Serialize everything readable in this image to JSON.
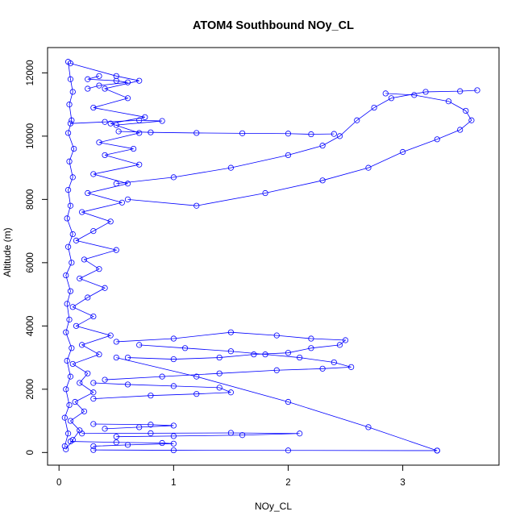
{
  "chart_data": {
    "type": "scatter",
    "title": "ATOM4 Southbound NOy_CL",
    "xlabel": "NOy_CL",
    "ylabel": "Altitude (m)",
    "xlim": [
      -0.1,
      3.84
    ],
    "ylim": [
      -400,
      12800
    ],
    "xticks": [
      0,
      1,
      2,
      3
    ],
    "yticks": [
      0,
      2000,
      4000,
      6000,
      8000,
      10000,
      12000
    ],
    "grid": false,
    "connected_points": true,
    "colors": {
      "series": "#0000ff",
      "axes": "#000000",
      "background": "#ffffff"
    },
    "series": [
      {
        "points": [
          [
            0.06,
            100
          ],
          [
            0.12,
            400
          ],
          [
            0.18,
            700
          ],
          [
            0.1,
            1000
          ],
          [
            0.22,
            1300
          ],
          [
            0.14,
            1600
          ],
          [
            0.3,
            1900
          ],
          [
            0.18,
            2200
          ],
          [
            0.25,
            2500
          ],
          [
            0.12,
            2800
          ],
          [
            0.35,
            3100
          ],
          [
            0.2,
            3400
          ],
          [
            0.45,
            3700
          ],
          [
            0.15,
            4000
          ],
          [
            0.3,
            4300
          ],
          [
            0.12,
            4600
          ],
          [
            0.25,
            4900
          ],
          [
            0.4,
            5200
          ],
          [
            0.18,
            5500
          ],
          [
            0.35,
            5800
          ],
          [
            0.22,
            6100
          ],
          [
            0.5,
            6400
          ],
          [
            0.15,
            6700
          ],
          [
            0.3,
            7000
          ],
          [
            0.45,
            7300
          ],
          [
            0.2,
            7600
          ],
          [
            0.55,
            7900
          ],
          [
            0.25,
            8200
          ],
          [
            0.6,
            8500
          ],
          [
            0.3,
            8800
          ],
          [
            0.7,
            9100
          ],
          [
            0.4,
            9400
          ],
          [
            0.65,
            9600
          ],
          [
            0.35,
            9800
          ],
          [
            0.7,
            10100
          ],
          [
            0.45,
            10400
          ],
          [
            0.75,
            10600
          ],
          [
            0.3,
            10900
          ],
          [
            0.6,
            11200
          ],
          [
            0.4,
            11500
          ],
          [
            0.7,
            11750
          ],
          [
            0.5,
            11900
          ],
          [
            0.1,
            12300
          ]
        ]
      },
      {
        "points": [
          [
            0.05,
            200
          ],
          [
            0.08,
            600
          ],
          [
            0.05,
            1100
          ],
          [
            0.09,
            1500
          ],
          [
            0.06,
            2000
          ],
          [
            0.1,
            2400
          ],
          [
            0.07,
            2900
          ],
          [
            0.11,
            3300
          ],
          [
            0.06,
            3800
          ],
          [
            0.09,
            4200
          ],
          [
            0.07,
            4700
          ],
          [
            0.1,
            5100
          ],
          [
            0.06,
            5600
          ],
          [
            0.11,
            6000
          ],
          [
            0.08,
            6500
          ],
          [
            0.12,
            6900
          ],
          [
            0.07,
            7400
          ],
          [
            0.1,
            7800
          ],
          [
            0.08,
            8300
          ],
          [
            0.12,
            8700
          ],
          [
            0.09,
            9200
          ],
          [
            0.13,
            9600
          ],
          [
            0.08,
            10100
          ],
          [
            0.11,
            10500
          ],
          [
            0.09,
            11000
          ],
          [
            0.12,
            11400
          ],
          [
            0.1,
            11800
          ],
          [
            0.08,
            12350
          ]
        ]
      },
      {
        "points": [
          [
            0.52,
            10150
          ],
          [
            0.8,
            10120
          ],
          [
            1.2,
            10100
          ],
          [
            1.6,
            10090
          ],
          [
            2.0,
            10080
          ],
          [
            2.2,
            10060
          ],
          [
            2.4,
            10070
          ]
        ]
      },
      {
        "points": [
          [
            0.5,
            8500
          ],
          [
            1.0,
            8700
          ],
          [
            1.5,
            9000
          ],
          [
            2.0,
            9400
          ],
          [
            2.3,
            9700
          ],
          [
            2.45,
            10000
          ],
          [
            2.6,
            10500
          ],
          [
            2.75,
            10900
          ],
          [
            2.9,
            11200
          ],
          [
            3.2,
            11400
          ],
          [
            3.5,
            11420
          ],
          [
            3.65,
            11450
          ]
        ]
      },
      {
        "points": [
          [
            0.6,
            8000
          ],
          [
            1.2,
            7800
          ],
          [
            1.8,
            8200
          ],
          [
            2.3,
            8600
          ],
          [
            2.7,
            9000
          ],
          [
            3.0,
            9500
          ],
          [
            3.3,
            9900
          ],
          [
            3.5,
            10200
          ],
          [
            3.6,
            10500
          ],
          [
            3.55,
            10800
          ],
          [
            3.4,
            11100
          ],
          [
            3.1,
            11300
          ],
          [
            2.85,
            11350
          ]
        ]
      },
      {
        "points": [
          [
            0.5,
            3500
          ],
          [
            1.0,
            3600
          ],
          [
            1.5,
            3800
          ],
          [
            1.9,
            3700
          ],
          [
            2.2,
            3600
          ],
          [
            2.5,
            3550
          ],
          [
            2.45,
            3400
          ],
          [
            2.2,
            3300
          ],
          [
            2.0,
            3150
          ],
          [
            1.7,
            3100
          ],
          [
            1.4,
            3000
          ],
          [
            1.0,
            2950
          ],
          [
            0.6,
            3000
          ]
        ]
      },
      {
        "points": [
          [
            0.4,
            2300
          ],
          [
            0.9,
            2400
          ],
          [
            1.4,
            2500
          ],
          [
            1.9,
            2600
          ],
          [
            2.3,
            2650
          ],
          [
            2.55,
            2700
          ],
          [
            2.4,
            2850
          ],
          [
            2.1,
            3000
          ],
          [
            1.8,
            3100
          ],
          [
            1.5,
            3200
          ],
          [
            1.1,
            3300
          ],
          [
            0.7,
            3400
          ]
        ]
      },
      {
        "points": [
          [
            0.3,
            1700
          ],
          [
            0.8,
            1800
          ],
          [
            1.2,
            1850
          ],
          [
            1.5,
            1900
          ],
          [
            1.4,
            2050
          ],
          [
            1.0,
            2100
          ],
          [
            0.6,
            2150
          ],
          [
            0.3,
            2200
          ]
        ]
      },
      {
        "points": [
          [
            0.2,
            600
          ],
          [
            0.8,
            610
          ],
          [
            1.5,
            620
          ],
          [
            2.1,
            600
          ],
          [
            1.6,
            550
          ],
          [
            1.0,
            520
          ],
          [
            0.5,
            500
          ]
        ]
      },
      {
        "points": [
          [
            0.3,
            900
          ],
          [
            0.8,
            880
          ],
          [
            1.0,
            850
          ],
          [
            0.7,
            800
          ],
          [
            0.4,
            750
          ]
        ]
      },
      {
        "points": [
          [
            0.1,
            350
          ],
          [
            0.5,
            320
          ],
          [
            0.9,
            300
          ],
          [
            1.0,
            280
          ],
          [
            0.6,
            240
          ],
          [
            0.3,
            200
          ]
        ]
      },
      {
        "points": [
          [
            0.5,
            3000
          ],
          [
            1.2,
            2400
          ],
          [
            2.0,
            1600
          ],
          [
            2.7,
            800
          ],
          [
            3.3,
            60
          ]
        ]
      },
      {
        "points": [
          [
            0.3,
            80
          ],
          [
            1.0,
            70
          ],
          [
            2.0,
            65
          ],
          [
            3.3,
            60
          ]
        ]
      },
      {
        "points": [
          [
            0.35,
            11900
          ],
          [
            0.25,
            11800
          ],
          [
            0.5,
            11750
          ],
          [
            0.6,
            11700
          ],
          [
            0.35,
            11600
          ],
          [
            0.25,
            11500
          ]
        ]
      },
      {
        "points": [
          [
            0.1,
            10400
          ],
          [
            0.4,
            10450
          ],
          [
            0.7,
            10500
          ],
          [
            0.9,
            10480
          ],
          [
            0.5,
            10350
          ]
        ]
      }
    ]
  }
}
